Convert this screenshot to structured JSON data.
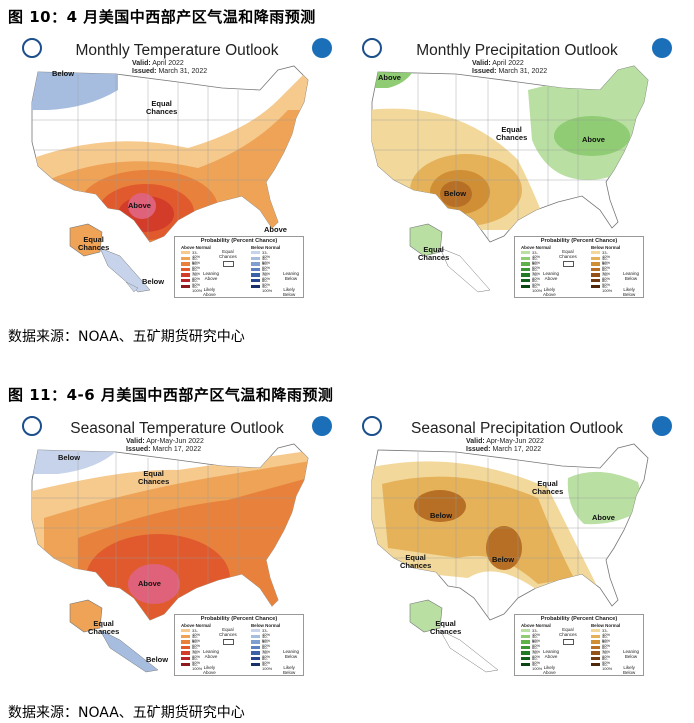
{
  "figures": [
    {
      "title": "图 10：4 月美国中西部产区气温和降雨预测",
      "source": "数据来源：NOAA、五矿期货研究中心",
      "maps": [
        {
          "title": "Monthly Temperature Outlook",
          "valid_label": "Valid:",
          "valid": "April 2022",
          "issued_label": "Issued:",
          "issued": "March 31, 2022",
          "labels": {
            "above_1": "Above",
            "above_2": "Above",
            "below_1": "Below",
            "below_2": "Below",
            "equal_1": "Equal\nChances",
            "equal_2": "Equal\nChances"
          }
        },
        {
          "title": "Monthly Precipitation Outlook",
          "valid_label": "Valid:",
          "valid": "April 2022",
          "issued_label": "Issued:",
          "issued": "March 31, 2022",
          "labels": {
            "above_1": "Above",
            "above_2": "Above",
            "below_1": "Below",
            "equal_1": "Equal\nChances",
            "equal_2": "Equal\nChances"
          }
        }
      ]
    },
    {
      "title": "图 11：4-6 月美国中西部产区气温和降雨预测",
      "source": "数据来源：NOAA、五矿期货研究中心",
      "maps": [
        {
          "title": "Seasonal Temperature Outlook",
          "valid_label": "Valid:",
          "valid": "Apr-May-Jun 2022",
          "issued_label": "Issued:",
          "issued": "March 17, 2022",
          "labels": {
            "above_1": "Above",
            "below_1": "Below",
            "below_2": "Below",
            "equal_1": "Equal\nChances",
            "equal_2": "Equal\nChances"
          }
        },
        {
          "title": "Seasonal Precipitation Outlook",
          "valid_label": "Valid:",
          "valid": "Apr-May-Jun 2022",
          "issued_label": "Issued:",
          "issued": "March 17, 2022",
          "labels": {
            "below_1": "Below",
            "below_2": "Below",
            "above_1": "Above",
            "equal_1": "Equal\nChances",
            "equal_2": "Equal\nChances",
            "equal_3": "Equal\nChances"
          }
        }
      ]
    }
  ],
  "legend": {
    "title": "Probability (Percent Chance)",
    "above_normal": "Above Normal",
    "below_normal": "Below Normal",
    "ranges": [
      "33-40%",
      "40-50%",
      "50-60%",
      "60-70%",
      "70-80%",
      "80-90%",
      "90-100%"
    ],
    "equal_chances": "Equal\nChances",
    "leaning_above": "Leaning\nAbove",
    "leaning_below": "Leaning\nBelow",
    "likely_above": "Likely\nAbove",
    "likely_below": "Likely\nBelow"
  },
  "colors": {
    "temp_above": [
      "#f6c98d",
      "#eea357",
      "#e8813b",
      "#e05a2e",
      "#d23c29",
      "#b9232a",
      "#8c1a1e"
    ],
    "temp_below": [
      "#c6d3ea",
      "#a6bde0",
      "#7f9fd1",
      "#5c80c0",
      "#3b61a8",
      "#27458a",
      "#18306a"
    ],
    "precip_above": [
      "#b9dfa2",
      "#8fcc74",
      "#5fb24a",
      "#3c9534",
      "#237a26",
      "#145f1c",
      "#0b4512"
    ],
    "precip_below": [
      "#f2d89a",
      "#e5b25a",
      "#d08f35",
      "#b66f24",
      "#93521a",
      "#703a12",
      "#4f280c"
    ],
    "noaa_blue": "#1b6fb8"
  }
}
